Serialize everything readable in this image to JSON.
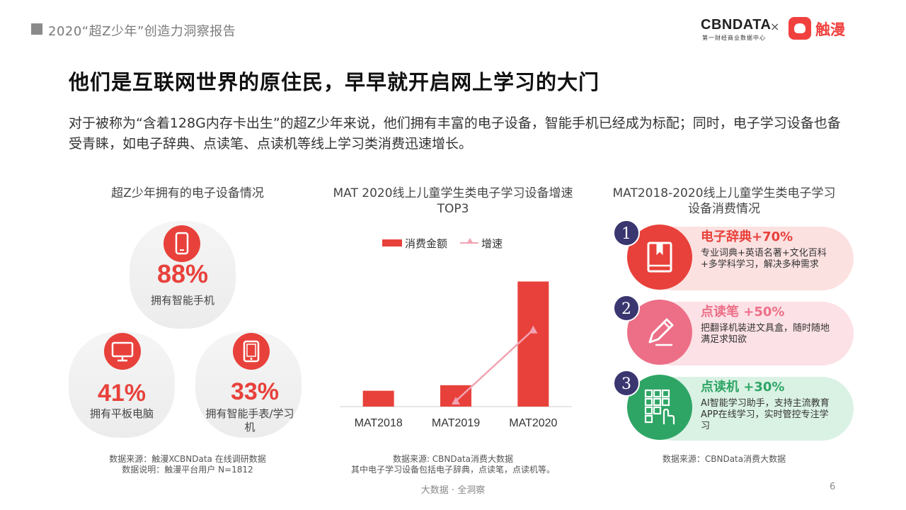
{
  "header": {
    "report_title": "2020“超Z少年”创造力洞察报告",
    "brand_main": "CBNDATA",
    "brand_sub": "第一财经商业数据中心",
    "times": "×",
    "partner": "触漫"
  },
  "slide": {
    "title": "他们是互联网世界的原住民，早早就开启网上学习的大门",
    "intro": "对于被称为“含着128G内存卡出生”的超Z少年来说，他们拥有丰富的电子设备，智能手机已经成为标配；同时，电子学习设备也备受青睐，如电子辞典、点读笔、点读机等线上学习类消费迅速增长。"
  },
  "devices": {
    "title": "超Z少年拥有的电子设备情况",
    "items": [
      {
        "icon": "smartphone-icon",
        "value": "88%",
        "label": "拥有智能手机"
      },
      {
        "icon": "tablet-icon",
        "value": "41%",
        "label": "拥有平板电脑"
      },
      {
        "icon": "smartwatch-icon",
        "value": "33%",
        "label": "拥有智能手表/学习机"
      }
    ],
    "source": "数据来源：触漫XCBNData 在线调研数据",
    "note": "数据说明：触漫平台用户 N=1812"
  },
  "growth_chart": {
    "title": "MAT 2020线上儿童学生类电子学习设备增速TOP3",
    "legend_bar": "消费金额",
    "legend_line": "增速",
    "source": "数据来源: CBNData消费大数据",
    "note": "其中电子学习设备包括电子辞典，点读笔，点读机等。"
  },
  "chart_data": {
    "type": "bar",
    "title": "MAT 2020线上儿童学生类电子学习设备增速TOP3",
    "categories": [
      "MAT2018",
      "MAT2019",
      "MAT2020"
    ],
    "series": [
      {
        "name": "消费金额",
        "type": "bar",
        "values": [
          1.0,
          1.35,
          7.9
        ]
      },
      {
        "name": "增速",
        "type": "line",
        "values": [
          null,
          0.35,
          4.85
        ]
      }
    ],
    "ylim": [
      0,
      8.5
    ],
    "grid": false,
    "legend_position": "top",
    "bar_color": "#e8413b",
    "line_color": "#f2a3b3"
  },
  "consumption": {
    "title": "MAT2018-2020线上儿童学生类电子学习设备消费情况",
    "items": [
      {
        "num": "1",
        "title": "电子辞典+70%",
        "desc": "专业词典+英语名著+文化百科+多学科学习，解决多种需求",
        "icon": "book-icon",
        "color": "#e8413b",
        "pill": "#fce1e1"
      },
      {
        "num": "2",
        "title": "点读笔 +50%",
        "desc": "把翻译机装进文具盒，随时随地满足求知欲",
        "icon": "pen-icon",
        "color": "#ec6f87",
        "pill": "#fce1e6"
      },
      {
        "num": "3",
        "title": "点读机 +30%",
        "desc": "AI智能学习助手，支持主流教育APP在线学习，实时管控专注学习",
        "icon": "reader-device-icon",
        "color": "#2ea565",
        "pill": "#daf2e4"
      }
    ],
    "source": "数据来源：CBNData消费大数据"
  },
  "footer": {
    "tagline": "大数据 · 全洞察",
    "page": "6"
  }
}
